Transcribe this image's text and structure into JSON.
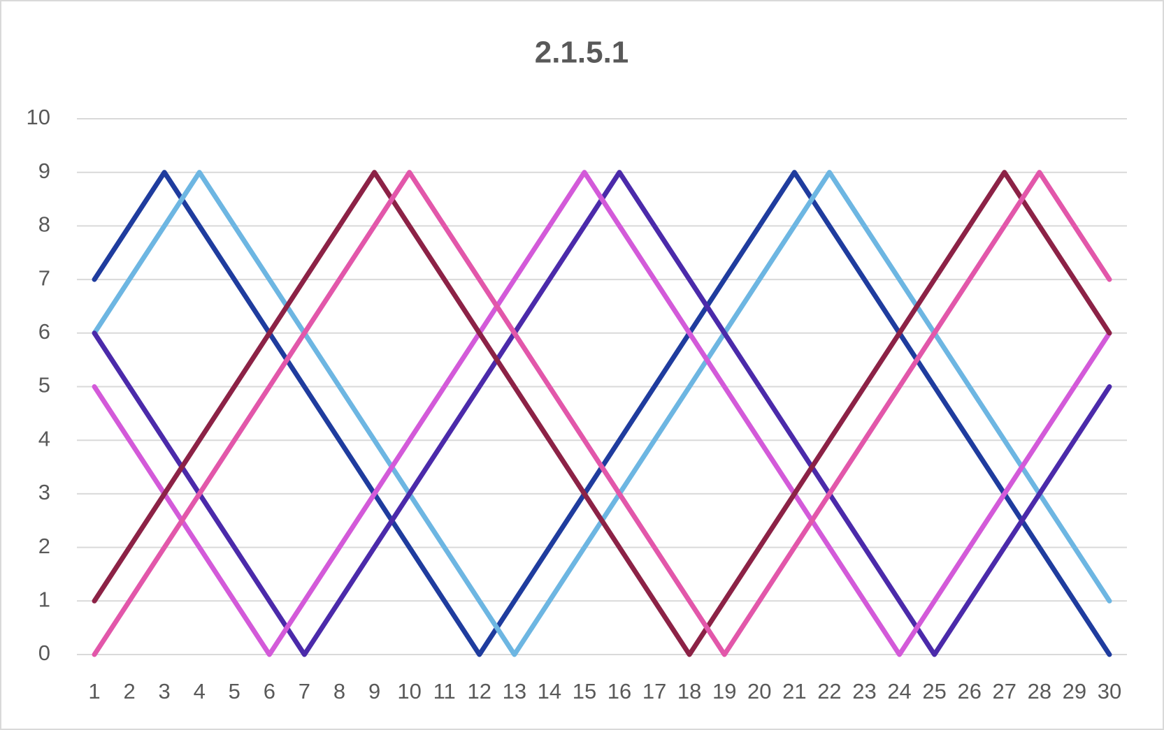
{
  "chart_data": {
    "type": "line",
    "title": "2.1.5.1",
    "categories": [
      "1",
      "2",
      "3",
      "4",
      "5",
      "6",
      "7",
      "8",
      "9",
      "10",
      "11",
      "12",
      "13",
      "14",
      "15",
      "16",
      "17",
      "18",
      "19",
      "20",
      "21",
      "22",
      "23",
      "24",
      "25",
      "26",
      "27",
      "28",
      "29",
      "30"
    ],
    "series": [
      {
        "color": "#1f3c9e",
        "values": [
          7,
          8,
          9,
          8,
          7,
          6,
          5,
          4,
          3,
          2,
          1,
          0,
          1,
          2,
          3,
          4,
          5,
          6,
          7,
          8,
          9,
          8,
          7,
          6,
          5,
          4,
          3,
          2,
          1,
          0
        ]
      },
      {
        "color": "#6db6e2",
        "values": [
          6,
          7,
          8,
          9,
          8,
          7,
          6,
          5,
          4,
          3,
          2,
          1,
          0,
          1,
          2,
          3,
          4,
          5,
          6,
          7,
          8,
          9,
          8,
          7,
          6,
          5,
          4,
          3,
          2,
          1
        ]
      },
      {
        "color": "#4b2aaa",
        "values": [
          6,
          5,
          4,
          3,
          2,
          1,
          0,
          1,
          2,
          3,
          4,
          5,
          6,
          7,
          8,
          9,
          8,
          7,
          6,
          5,
          4,
          3,
          2,
          1,
          0,
          1,
          2,
          3,
          4,
          5
        ]
      },
      {
        "color": "#d35ad9",
        "values": [
          5,
          4,
          3,
          2,
          1,
          0,
          1,
          2,
          3,
          4,
          5,
          6,
          7,
          8,
          9,
          8,
          7,
          6,
          5,
          4,
          3,
          2,
          1,
          0,
          1,
          2,
          3,
          4,
          5,
          6
        ]
      },
      {
        "color": "#8c2246",
        "values": [
          1,
          2,
          3,
          4,
          5,
          6,
          7,
          8,
          9,
          8,
          7,
          6,
          5,
          4,
          3,
          2,
          1,
          0,
          1,
          2,
          3,
          4,
          5,
          6,
          7,
          8,
          9,
          8,
          7,
          6
        ]
      },
      {
        "color": "#e257aa",
        "values": [
          0,
          1,
          2,
          3,
          4,
          5,
          6,
          7,
          8,
          9,
          8,
          7,
          6,
          5,
          4,
          3,
          2,
          1,
          0,
          1,
          2,
          3,
          4,
          5,
          6,
          7,
          8,
          9,
          8,
          7
        ]
      }
    ],
    "ylim": [
      0,
      10
    ],
    "yticks": [
      0,
      1,
      2,
      3,
      4,
      5,
      6,
      7,
      8,
      9,
      10
    ],
    "grid": true
  }
}
